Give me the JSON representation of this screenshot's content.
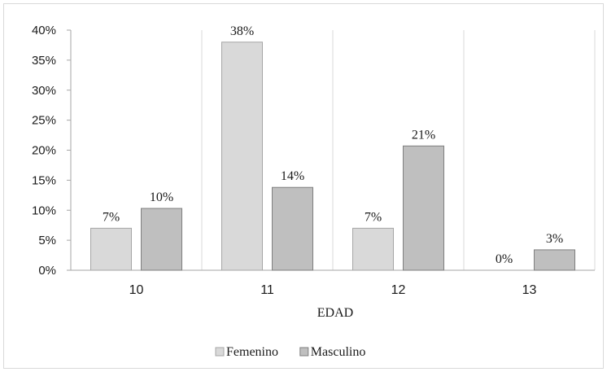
{
  "chart_data": {
    "type": "bar",
    "categories": [
      "10",
      "11",
      "12",
      "13"
    ],
    "series": [
      {
        "name": "Femenino",
        "values": [
          7,
          38,
          7,
          0
        ],
        "labels": [
          "7%",
          "38%",
          "7%",
          "0%"
        ],
        "color": "#d9d9d9",
        "stroke": "#a6a6a6"
      },
      {
        "name": "Masculino",
        "values": [
          10.3,
          13.8,
          20.7,
          3.4
        ],
        "labels": [
          "10%",
          "14%",
          "21%",
          "3%"
        ],
        "color": "#bfbfbf",
        "stroke": "#7f7f7f"
      }
    ],
    "xlabel": "EDAD",
    "ylabel": "",
    "ylim": [
      0,
      40
    ],
    "yticks": [
      0,
      5,
      10,
      15,
      20,
      25,
      30,
      35,
      40
    ],
    "ytick_labels": [
      "0%",
      "5%",
      "10%",
      "15%",
      "20%",
      "25%",
      "30%",
      "35%",
      "40%"
    ],
    "grid": "vertical",
    "legend_position": "bottom",
    "grid_color": "#d9d9d9",
    "axis_color": "#a6a6a6"
  }
}
